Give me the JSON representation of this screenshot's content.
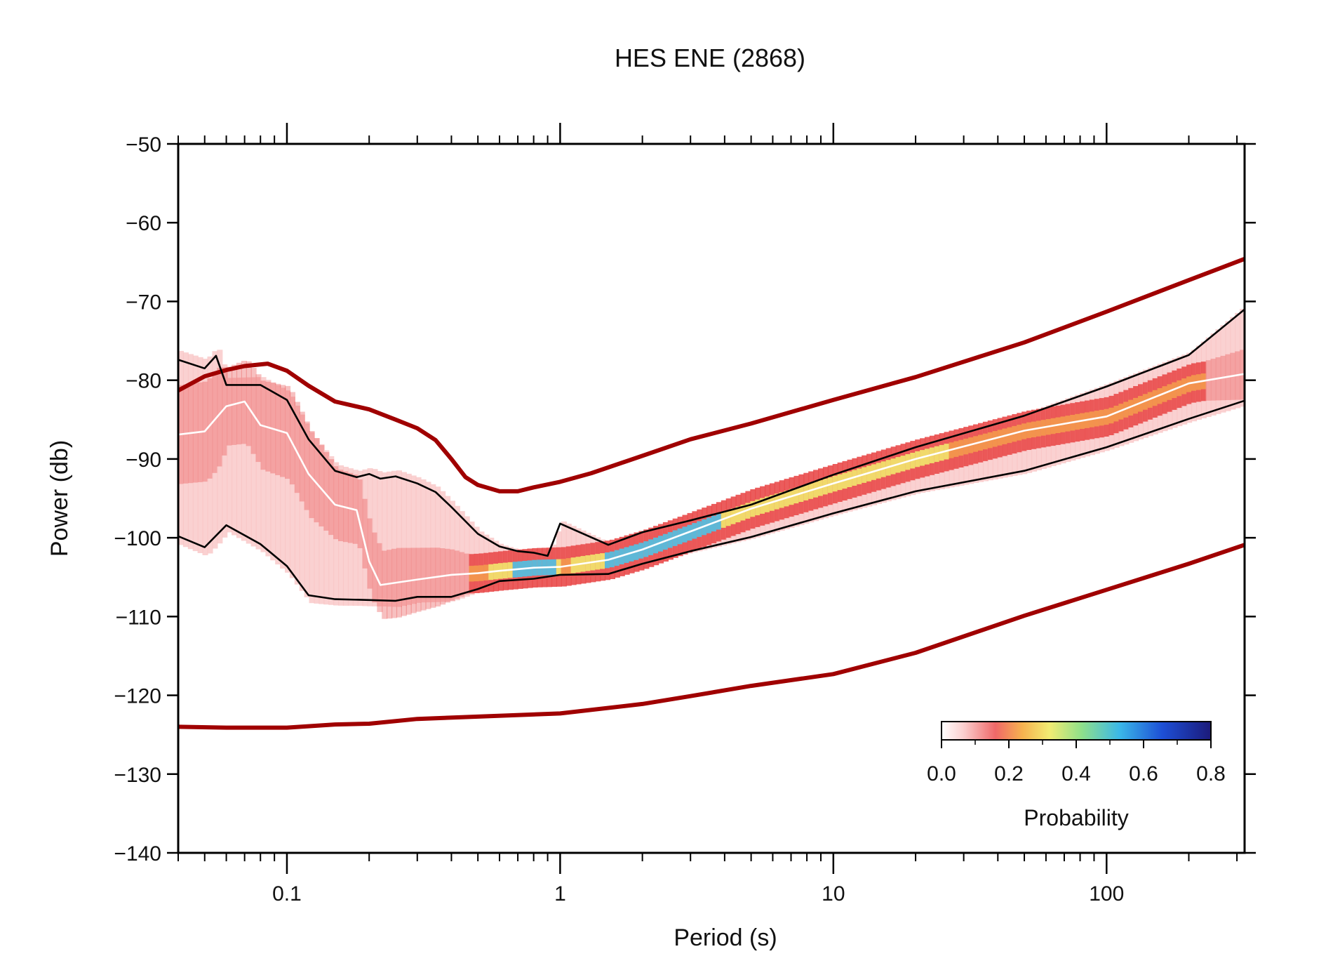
{
  "chart_data": {
    "type": "line",
    "title": "HES ENE (2868)",
    "xlabel": "Period (s)",
    "ylabel": "Power (db)",
    "xscale": "log",
    "xlim": [
      0.04,
      320
    ],
    "ylim": [
      -140,
      -50
    ],
    "x_ticks": [
      {
        "value": 0.1,
        "label": "0.1"
      },
      {
        "value": 1,
        "label": "1"
      },
      {
        "value": 10,
        "label": "10"
      },
      {
        "value": 100,
        "label": "100"
      }
    ],
    "y_ticks": [
      {
        "value": -50,
        "label": "−50"
      },
      {
        "value": -60,
        "label": "−60"
      },
      {
        "value": -70,
        "label": "−70"
      },
      {
        "value": -80,
        "label": "−80"
      },
      {
        "value": -90,
        "label": "−90"
      },
      {
        "value": -100,
        "label": "−100"
      },
      {
        "value": -110,
        "label": "−110"
      },
      {
        "value": -120,
        "label": "−120"
      },
      {
        "value": -130,
        "label": "−130"
      },
      {
        "value": -140,
        "label": "−140"
      }
    ],
    "colorbar": {
      "label": "Probability",
      "range": [
        0,
        0.8
      ],
      "ticks": [
        {
          "value": 0.0,
          "label": "0.0"
        },
        {
          "value": 0.2,
          "label": "0.2"
        },
        {
          "value": 0.4,
          "label": "0.4"
        },
        {
          "value": 0.6,
          "label": "0.6"
        },
        {
          "value": 0.8,
          "label": "0.8"
        }
      ],
      "placement": "bottom-right"
    },
    "colors": {
      "noise_models": "#a00000",
      "percentiles": "#000000",
      "mode": "#ffffff",
      "density_low": "#f9c6c6",
      "density_mid": "#e94a4a",
      "density_high": "#2b4fd8"
    },
    "series": [
      {
        "role": "high-noise-model",
        "x": [
          0.04,
          0.05,
          0.06,
          0.07,
          0.085,
          0.1,
          0.12,
          0.15,
          0.2,
          0.25,
          0.3,
          0.35,
          0.4,
          0.45,
          0.5,
          0.6,
          0.7,
          0.8,
          1,
          1.3,
          2,
          3,
          5,
          10,
          20,
          50,
          100,
          200,
          320
        ],
        "y": [
          -81.3,
          -79.5,
          -78.7,
          -78.2,
          -77.9,
          -78.8,
          -80.7,
          -82.7,
          -83.7,
          -85,
          -86.1,
          -87.6,
          -90,
          -92.3,
          -93.3,
          -94.1,
          -94.1,
          -93.6,
          -92.9,
          -91.8,
          -89.6,
          -87.5,
          -85.5,
          -82.5,
          -79.6,
          -75.2,
          -71.3,
          -67.3,
          -64.6
        ]
      },
      {
        "role": "low-noise-model",
        "x": [
          0.04,
          0.06,
          0.1,
          0.15,
          0.2,
          0.3,
          0.5,
          1,
          2,
          3,
          5,
          10,
          20,
          50,
          100,
          200,
          320
        ],
        "y": [
          -124,
          -124.1,
          -124.1,
          -123.7,
          -123.6,
          -123,
          -122.7,
          -122.3,
          -121.1,
          -120.1,
          -118.8,
          -117.3,
          -114.6,
          -109.9,
          -106.6,
          -103.3,
          -100.9
        ]
      },
      {
        "role": "upper-percentile",
        "x": [
          0.04,
          0.05,
          0.055,
          0.06,
          0.08,
          0.1,
          0.12,
          0.15,
          0.18,
          0.2,
          0.22,
          0.25,
          0.3,
          0.35,
          0.4,
          0.5,
          0.6,
          0.7,
          0.8,
          0.9,
          1,
          1.5,
          2,
          3,
          5,
          10,
          20,
          50,
          100,
          200,
          320
        ],
        "y": [
          -77.4,
          -78.5,
          -76.9,
          -80.6,
          -80.6,
          -82.5,
          -87.5,
          -91.5,
          -92.3,
          -91.9,
          -92.5,
          -92.2,
          -93.1,
          -94.2,
          -96.1,
          -99.5,
          -101.1,
          -101.7,
          -101.9,
          -102.3,
          -98.2,
          -100.9,
          -99.3,
          -97.8,
          -95.8,
          -92,
          -88.5,
          -84.5,
          -80.8,
          -76.8,
          -71
        ]
      },
      {
        "role": "lower-percentile",
        "x": [
          0.04,
          0.05,
          0.06,
          0.08,
          0.1,
          0.12,
          0.15,
          0.2,
          0.25,
          0.3,
          0.4,
          0.5,
          0.6,
          0.8,
          1,
          1.5,
          2,
          3,
          5,
          10,
          20,
          50,
          100,
          200,
          320
        ],
        "y": [
          -99.8,
          -101.2,
          -98.4,
          -100.8,
          -103.6,
          -107.3,
          -107.8,
          -107.9,
          -108,
          -107.5,
          -107.5,
          -106.5,
          -105.5,
          -105.2,
          -104.7,
          -104.6,
          -103.3,
          -101.7,
          -99.9,
          -96.9,
          -94.1,
          -91.5,
          -88.5,
          -84.9,
          -82.6
        ]
      },
      {
        "role": "mode",
        "x": [
          0.04,
          0.05,
          0.06,
          0.07,
          0.08,
          0.1,
          0.12,
          0.15,
          0.18,
          0.2,
          0.22,
          0.3,
          0.4,
          0.5,
          0.6,
          0.8,
          1,
          1.5,
          2,
          3,
          5,
          10,
          20,
          50,
          100,
          200,
          320
        ],
        "y": [
          -86.9,
          -86.5,
          -83.3,
          -82.7,
          -85.7,
          -86.7,
          -91.9,
          -95.8,
          -96.5,
          -103,
          -106,
          -105.3,
          -104.7,
          -104.5,
          -104.2,
          -103.8,
          -103.7,
          -102.8,
          -101.5,
          -99.2,
          -96.3,
          -93.1,
          -90,
          -86.4,
          -84.6,
          -80.4,
          -79.2
        ]
      }
    ]
  }
}
